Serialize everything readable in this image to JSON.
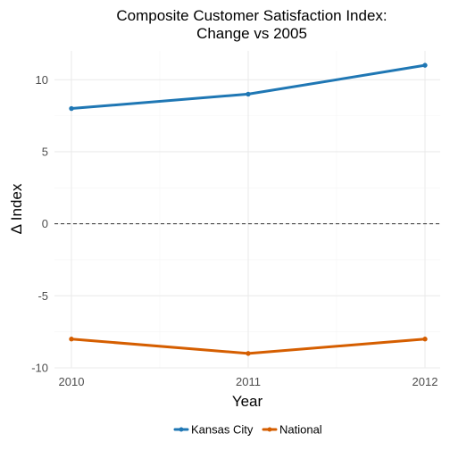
{
  "chart_data": {
    "type": "line",
    "title": [
      "Composite Customer Satisfaction Index:",
      "Change vs 2005"
    ],
    "xlabel": "Year",
    "ylabel": "Δ Index",
    "x": [
      2010,
      2011,
      2012
    ],
    "x_ticks": [
      "2010",
      "2011",
      "2012"
    ],
    "xlim": [
      2010,
      2012
    ],
    "ylim": [
      -10,
      12
    ],
    "y_ticks": [
      -10,
      -5,
      0,
      5,
      10
    ],
    "y_tick_labels": [
      "-10",
      "-5",
      "0",
      "5",
      "10"
    ],
    "reference_line": {
      "y": 0,
      "style": "dashed"
    },
    "grid": true,
    "legend_position": "bottom",
    "series": [
      {
        "name": "Kansas City",
        "color": "#1f77b4",
        "values": [
          8,
          9,
          11
        ]
      },
      {
        "name": "National",
        "color": "#d55e00",
        "values": [
          -8,
          -9,
          -8
        ]
      }
    ]
  }
}
